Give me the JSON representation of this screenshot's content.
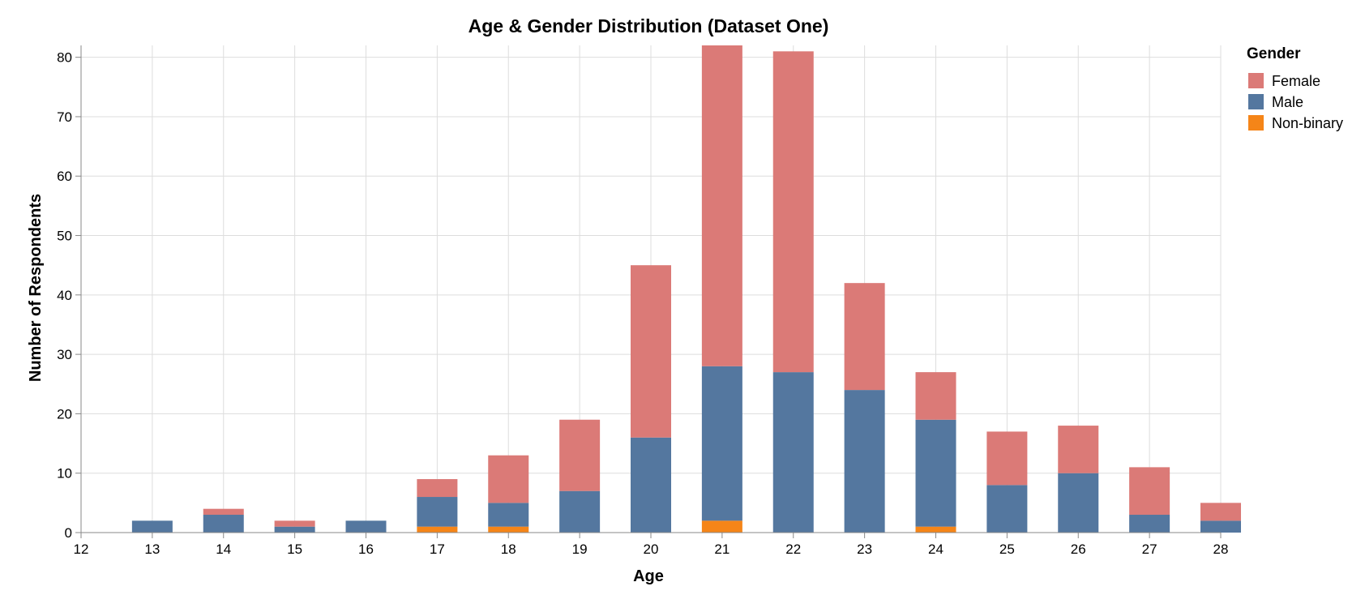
{
  "chart_data": {
    "type": "bar",
    "stacked": true,
    "title": "Age & Gender Distribution (Dataset One)",
    "xlabel": "Age",
    "ylabel": "Number of Respondents",
    "x_ticks": [
      "12",
      "13",
      "14",
      "15",
      "16",
      "17",
      "18",
      "19",
      "20",
      "21",
      "22",
      "23",
      "24",
      "25",
      "26",
      "27",
      "28"
    ],
    "y_ticks": [
      "0",
      "10",
      "20",
      "30",
      "40",
      "50",
      "60",
      "70",
      "80"
    ],
    "xlim": [
      12,
      28
    ],
    "ylim": [
      0,
      82
    ],
    "grid": true,
    "legend_title": "Gender",
    "legend_position": "top-right",
    "categories": [
      13,
      14,
      15,
      16,
      17,
      18,
      19,
      20,
      21,
      22,
      23,
      24,
      25,
      26,
      27,
      28
    ],
    "series": [
      {
        "name": "Non-binary",
        "color": "#f58518",
        "values": [
          0,
          0,
          0,
          0,
          1,
          1,
          0,
          0,
          2,
          0,
          0,
          1,
          0,
          0,
          0,
          0
        ]
      },
      {
        "name": "Male",
        "color": "#54779f",
        "values": [
          2,
          3,
          1,
          2,
          5,
          4,
          7,
          16,
          26,
          27,
          24,
          18,
          8,
          10,
          3,
          2
        ]
      },
      {
        "name": "Female",
        "color": "#db7a77",
        "values": [
          0,
          1,
          1,
          0,
          3,
          8,
          12,
          29,
          54,
          54,
          18,
          8,
          9,
          8,
          8,
          3
        ]
      }
    ],
    "legend_order": [
      "Female",
      "Male",
      "Non-binary"
    ]
  }
}
